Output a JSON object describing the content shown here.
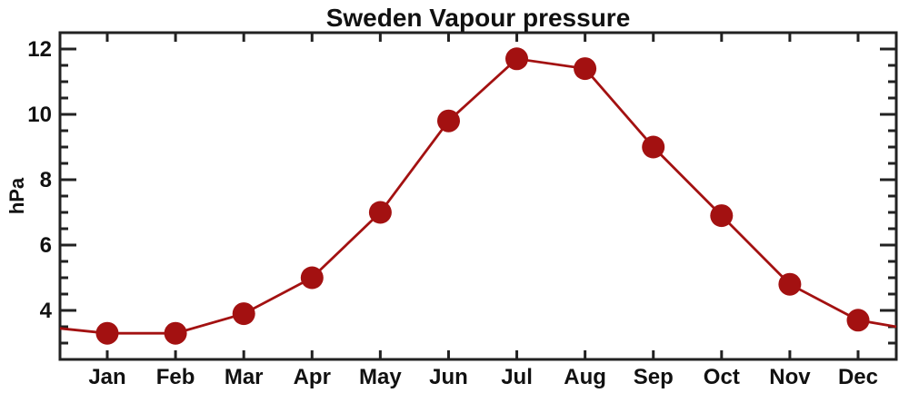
{
  "chart_data": {
    "type": "line",
    "title": "Sweden Vapour pressure",
    "xlabel": "",
    "ylabel": "hPa",
    "categories": [
      "Jan",
      "Feb",
      "Mar",
      "Apr",
      "May",
      "Jun",
      "Jul",
      "Aug",
      "Sep",
      "Oct",
      "Nov",
      "Dec"
    ],
    "values": [
      3.3,
      3.3,
      3.9,
      5.0,
      7.0,
      9.8,
      11.7,
      11.4,
      9.0,
      6.9,
      4.8,
      3.7
    ],
    "edge_values": {
      "left": 3.45,
      "right": 3.5
    },
    "ylim": [
      2.5,
      12.5
    ],
    "y_major_ticks": [
      4,
      6,
      8,
      10,
      12
    ],
    "y_minor_step": 0.5,
    "grid": false,
    "legend": null,
    "line_color": "#a31111",
    "frame_color": "#222222",
    "marker": "circle"
  }
}
